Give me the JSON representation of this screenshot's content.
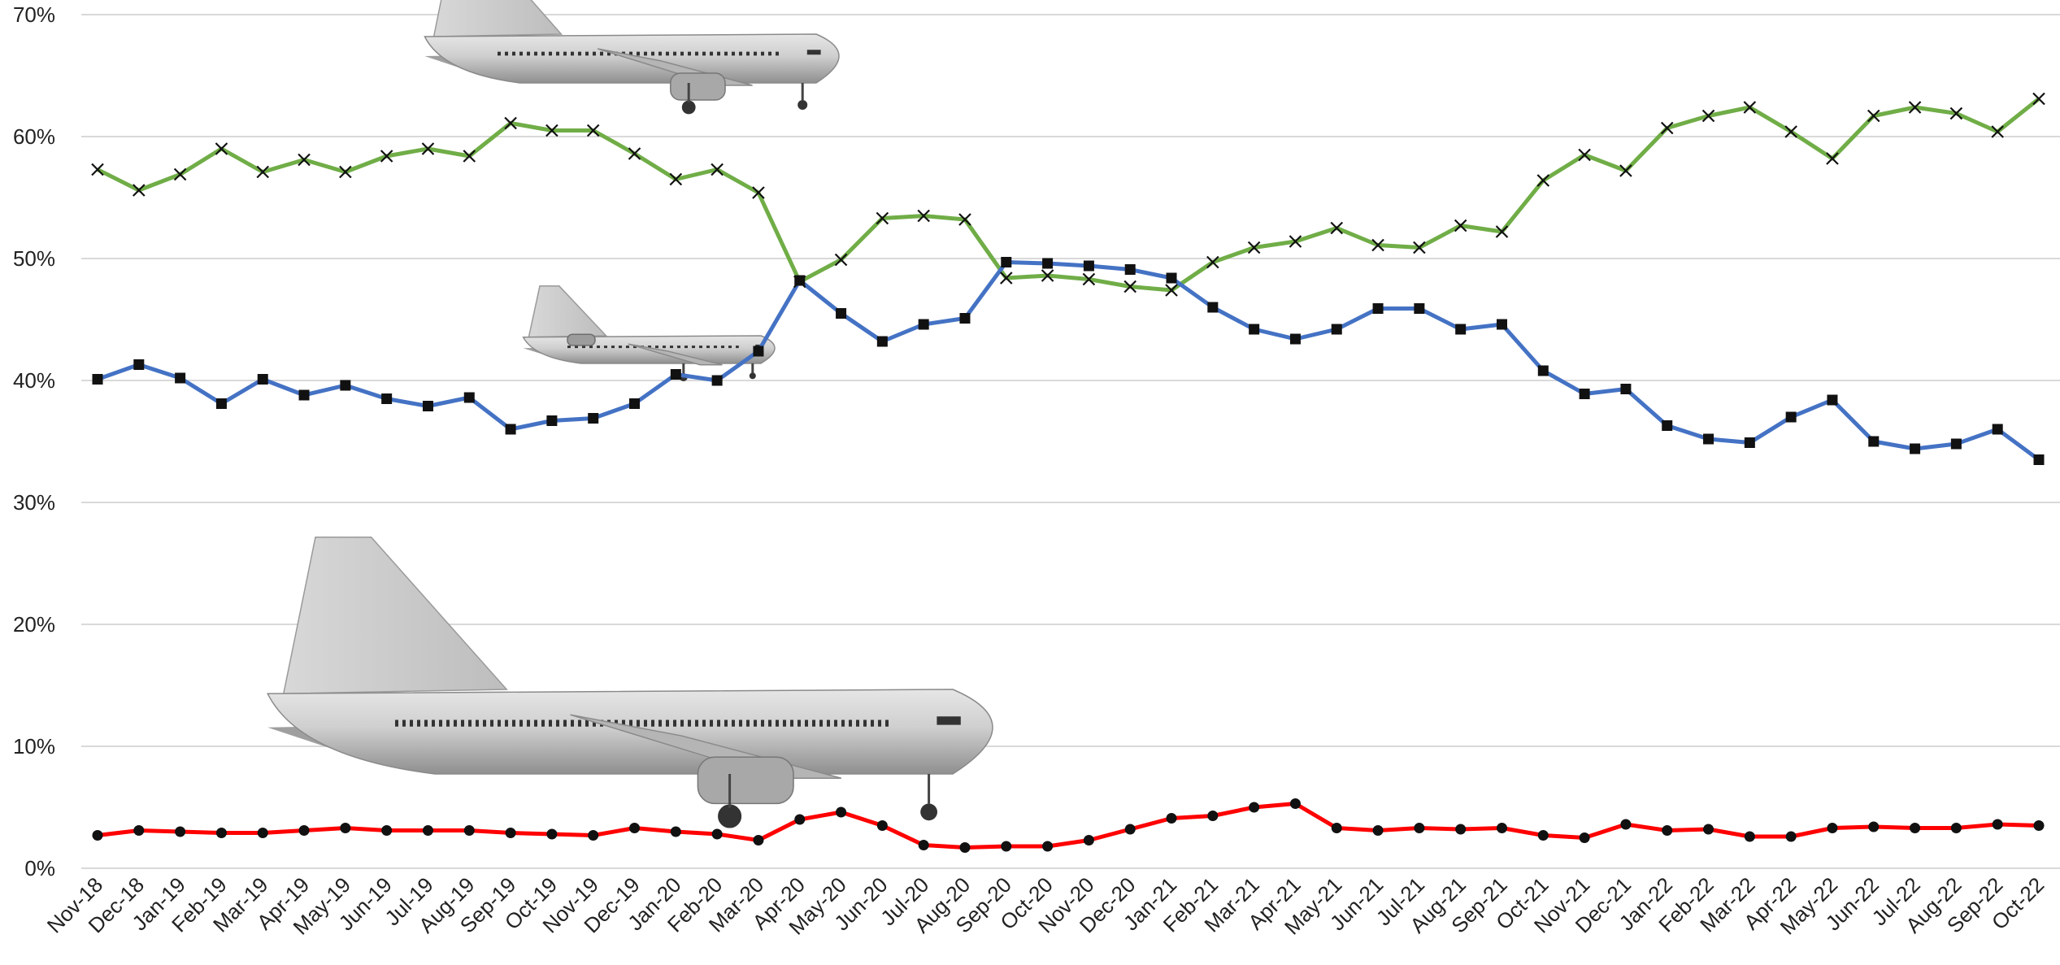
{
  "chart_data": {
    "type": "line",
    "title": "",
    "xlabel": "",
    "ylabel": "",
    "ylim": [
      0,
      70
    ],
    "y_tick_labels": [
      "0%",
      "10%",
      "20%",
      "30%",
      "40%",
      "50%",
      "60%",
      "70%"
    ],
    "y_ticks": [
      0,
      10,
      20,
      30,
      40,
      50,
      60,
      70
    ],
    "grid": "horizontal",
    "legend": "none",
    "categories": [
      "Nov-18",
      "Dec-18",
      "Jan-19",
      "Feb-19",
      "Mar-19",
      "Apr-19",
      "May-19",
      "Jun-19",
      "Jul-19",
      "Aug-19",
      "Sep-19",
      "Oct-19",
      "Nov-19",
      "Dec-19",
      "Jan-20",
      "Feb-20",
      "Mar-20",
      "Apr-20",
      "May-20",
      "Jun-20",
      "Jul-20",
      "Aug-20",
      "Sep-20",
      "Oct-20",
      "Nov-20",
      "Dec-20",
      "Jan-21",
      "Feb-21",
      "Mar-21",
      "Apr-21",
      "May-21",
      "Jun-21",
      "Jul-21",
      "Aug-21",
      "Sep-21",
      "Oct-21",
      "Nov-21",
      "Dec-21",
      "Jan-22",
      "Feb-22",
      "Mar-22",
      "Apr-22",
      "May-22",
      "Jun-22",
      "Jul-22",
      "Aug-22",
      "Sep-22",
      "Oct-22"
    ],
    "series": [
      {
        "color": "#70AD47",
        "marker": "x",
        "values": [
          57.3,
          55.6,
          56.9,
          59.0,
          57.1,
          58.1,
          57.1,
          58.4,
          59.0,
          58.4,
          61.1,
          60.5,
          60.5,
          58.6,
          56.5,
          57.3,
          55.4,
          48.1,
          49.9,
          53.3,
          53.5,
          53.2,
          48.4,
          48.6,
          48.3,
          47.7,
          47.4,
          49.7,
          50.9,
          51.4,
          52.5,
          51.1,
          50.9,
          52.7,
          52.2,
          56.4,
          58.5,
          57.2,
          60.7,
          61.7,
          62.4,
          60.4,
          58.2,
          61.7,
          62.4,
          61.9,
          60.4,
          63.1
        ]
      },
      {
        "color": "#4472C4",
        "marker": "square",
        "values": [
          40.1,
          41.3,
          40.2,
          38.1,
          40.1,
          38.8,
          39.6,
          38.5,
          37.9,
          38.6,
          36.0,
          36.7,
          36.9,
          38.1,
          40.5,
          40.0,
          42.4,
          48.2,
          45.5,
          43.2,
          44.6,
          45.1,
          49.7,
          49.6,
          49.4,
          49.1,
          48.4,
          46.0,
          44.2,
          43.4,
          44.2,
          45.9,
          45.9,
          44.2,
          44.6,
          40.8,
          38.9,
          39.3,
          36.3,
          35.2,
          34.9,
          37.0,
          38.4,
          35.0,
          34.4,
          34.8,
          36.0,
          33.5
        ]
      },
      {
        "color": "#FF0000",
        "marker": "circle",
        "values": [
          2.7,
          3.1,
          3.0,
          2.9,
          2.9,
          3.1,
          3.3,
          3.1,
          3.1,
          3.1,
          2.9,
          2.8,
          2.7,
          3.3,
          3.0,
          2.8,
          2.3,
          4.0,
          4.6,
          3.5,
          1.9,
          1.7,
          1.8,
          1.8,
          2.3,
          3.2,
          4.1,
          4.3,
          5.0,
          5.3,
          3.3,
          3.1,
          3.3,
          3.2,
          3.3,
          2.7,
          2.5,
          3.6,
          3.1,
          3.2,
          2.6,
          2.6,
          3.3,
          3.4,
          3.3,
          3.3,
          3.6,
          3.5
        ]
      }
    ],
    "images": [
      {
        "name": "narrowbody-jet-image",
        "near_series": 0
      },
      {
        "name": "regional-jet-image",
        "near_series": 1
      },
      {
        "name": "widebody-jet-image",
        "near_series": 2
      }
    ]
  }
}
